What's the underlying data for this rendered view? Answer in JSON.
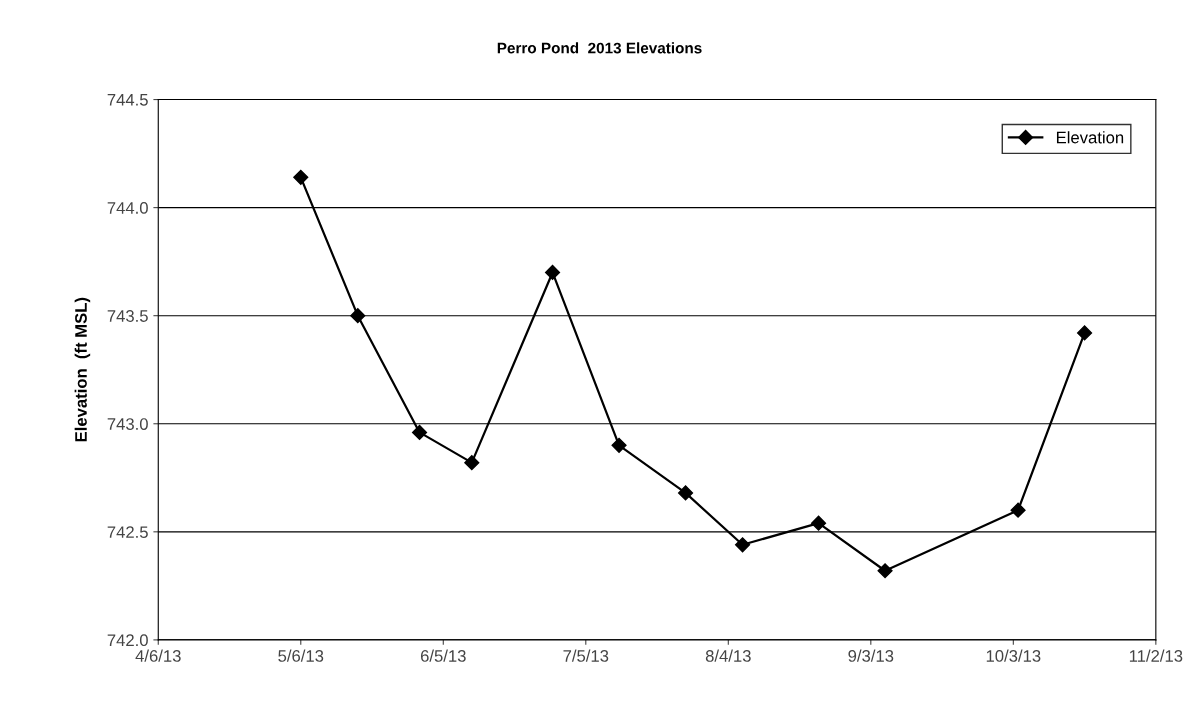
{
  "chart_data": {
    "type": "line",
    "title": "Perro Pond  2013 Elevations",
    "ylabel": "Elevation  (ft MSL)",
    "x": [
      "2013-05-06",
      "2013-05-18",
      "2013-05-31",
      "2013-06-11",
      "2013-06-28",
      "2013-07-12",
      "2013-07-26",
      "2013-08-07",
      "2013-08-23",
      "2013-09-06",
      "2013-10-04",
      "2013-10-18"
    ],
    "series": [
      {
        "name": "Elevation",
        "color": "#000000",
        "values": [
          744.14,
          743.5,
          742.96,
          742.82,
          743.7,
          742.9,
          742.68,
          742.44,
          742.54,
          742.32,
          742.6,
          743.42
        ]
      }
    ],
    "xlim": [
      "2013-04-06",
      "2013-11-02"
    ],
    "xticks": [
      {
        "value": "2013-04-06",
        "label": "4/6/13"
      },
      {
        "value": "2013-05-06",
        "label": "5/6/13"
      },
      {
        "value": "2013-06-05",
        "label": "6/5/13"
      },
      {
        "value": "2013-07-05",
        "label": "7/5/13"
      },
      {
        "value": "2013-08-04",
        "label": "8/4/13"
      },
      {
        "value": "2013-09-03",
        "label": "9/3/13"
      },
      {
        "value": "2013-10-03",
        "label": "10/3/13"
      },
      {
        "value": "2013-11-02",
        "label": "11/2/13"
      }
    ],
    "ylim": [
      742.0,
      744.5
    ],
    "yticks": [
      {
        "value": 742.0,
        "label": "742.0"
      },
      {
        "value": 742.5,
        "label": "742.5"
      },
      {
        "value": 743.0,
        "label": "743.0"
      },
      {
        "value": 743.5,
        "label": "743.5"
      },
      {
        "value": 744.0,
        "label": "744.0"
      },
      {
        "value": 744.5,
        "label": "744.5"
      }
    ],
    "grid": "y",
    "legend": "top right",
    "marker": "diamond",
    "line_style": "solid"
  }
}
